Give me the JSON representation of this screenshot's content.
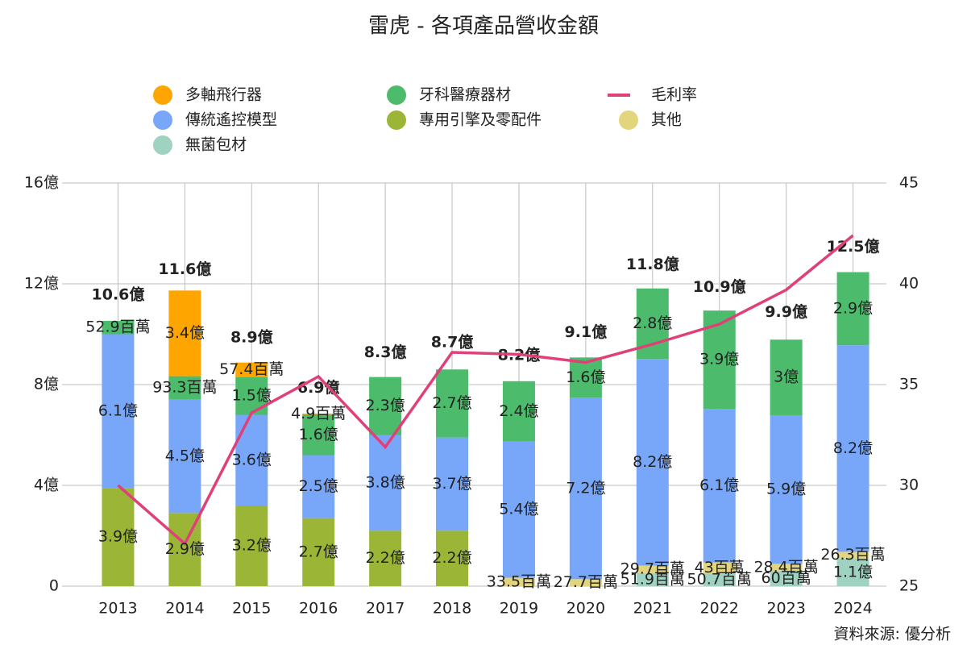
{
  "chart_data": {
    "type": "bar",
    "title": "雷虎 - 各項產品營收金額",
    "source": "資料來源: 優分析",
    "categories": [
      "2013",
      "2014",
      "2015",
      "2016",
      "2017",
      "2018",
      "2019",
      "2020",
      "2021",
      "2022",
      "2023",
      "2024"
    ],
    "series": [
      {
        "name": "多軸飛行器",
        "color": "#ffa500",
        "values": [
          null,
          3.4,
          0.574,
          0.049,
          null,
          null,
          null,
          null,
          null,
          null,
          null,
          null
        ],
        "value_labels": [
          null,
          "3.4億",
          "57.4百萬",
          "4.9百萬",
          null,
          null,
          null,
          null,
          null,
          null,
          null,
          null
        ]
      },
      {
        "name": "牙科醫療器材",
        "color": "#4cbb6c",
        "values": [
          0.529,
          0.933,
          1.5,
          1.6,
          2.3,
          2.7,
          2.4,
          1.6,
          2.8,
          3.9,
          3,
          2.9
        ],
        "value_labels": [
          "52.9百萬",
          "93.3百萬",
          "1.5億",
          "1.6億",
          "2.3億",
          "2.7億",
          "2.4億",
          "1.6億",
          "2.8億",
          "3.9億",
          "3億",
          "2.9億"
        ]
      },
      {
        "name": "毛利率",
        "type": "line",
        "axis": "y2",
        "color": "#e0407a",
        "values": [
          30,
          27.1,
          33.6,
          35.4,
          31.9,
          36.6,
          36.5,
          36.1,
          37,
          38,
          39.7,
          42.4
        ]
      },
      {
        "name": "傳統遙控模型",
        "color": "#78a6f8",
        "values": [
          6.1,
          4.5,
          3.6,
          2.5,
          3.8,
          3.7,
          5.4,
          7.2,
          8.2,
          6.1,
          5.9,
          8.2
        ],
        "value_labels": [
          "6.1億",
          "4.5億",
          "3.6億",
          "2.5億",
          "3.8億",
          "3.7億",
          "5.4億",
          "7.2億",
          "8.2億",
          "6.1億",
          "5.9億",
          "8.2億"
        ]
      },
      {
        "name": "專用引擎及零配件",
        "color": "#9bb536",
        "values": [
          3.9,
          2.9,
          3.2,
          2.7,
          2.2,
          2.2,
          null,
          null,
          null,
          null,
          null,
          null
        ],
        "value_labels": [
          "3.9億",
          "2.9億",
          "3.2億",
          "2.7億",
          "2.2億",
          "2.2億",
          null,
          null,
          null,
          null,
          null,
          null
        ]
      },
      {
        "name": "其他",
        "color": "#e2d57e",
        "values": [
          null,
          null,
          null,
          null,
          null,
          null,
          0.335,
          0.277,
          0.297,
          0.43,
          0.284,
          0.263
        ],
        "value_labels": [
          null,
          null,
          null,
          null,
          null,
          null,
          "33.5百萬",
          "27.7百萬",
          "29.7百萬",
          "43百萬",
          "28.4百萬",
          "26.3百萬"
        ]
      },
      {
        "name": "無菌包材",
        "color": "#9fd2c1",
        "values": [
          null,
          null,
          null,
          null,
          null,
          null,
          null,
          null,
          0.519,
          0.507,
          0.6,
          1.1
        ],
        "value_labels": [
          null,
          null,
          null,
          null,
          null,
          null,
          null,
          null,
          "51.9百萬",
          "50.7百萬",
          "60百萬",
          "1.1億"
        ]
      }
    ],
    "totals": [
      10.6,
      11.6,
      8.9,
      6.9,
      8.3,
      8.7,
      8.2,
      9.1,
      11.8,
      10.9,
      9.9,
      12.5
    ],
    "total_labels": [
      "10.6億",
      "11.6億",
      "8.9億",
      "6.9億",
      "8.3億",
      "8.7億",
      "8.2億",
      "9.1億",
      "11.8億",
      "10.9億",
      "9.9億",
      "12.5億"
    ],
    "ylim": [
      0,
      16
    ],
    "yticks": [
      0,
      {
        "value": 4,
        "label": "4億"
      },
      {
        "value": 8,
        "label": "8億"
      },
      {
        "value": 12,
        "label": "12億"
      },
      {
        "value": 16,
        "label": "16億"
      }
    ],
    "y2lim": [
      25,
      45
    ],
    "y2ticks": [
      25,
      30,
      35,
      40,
      45
    ],
    "grid": true
  }
}
